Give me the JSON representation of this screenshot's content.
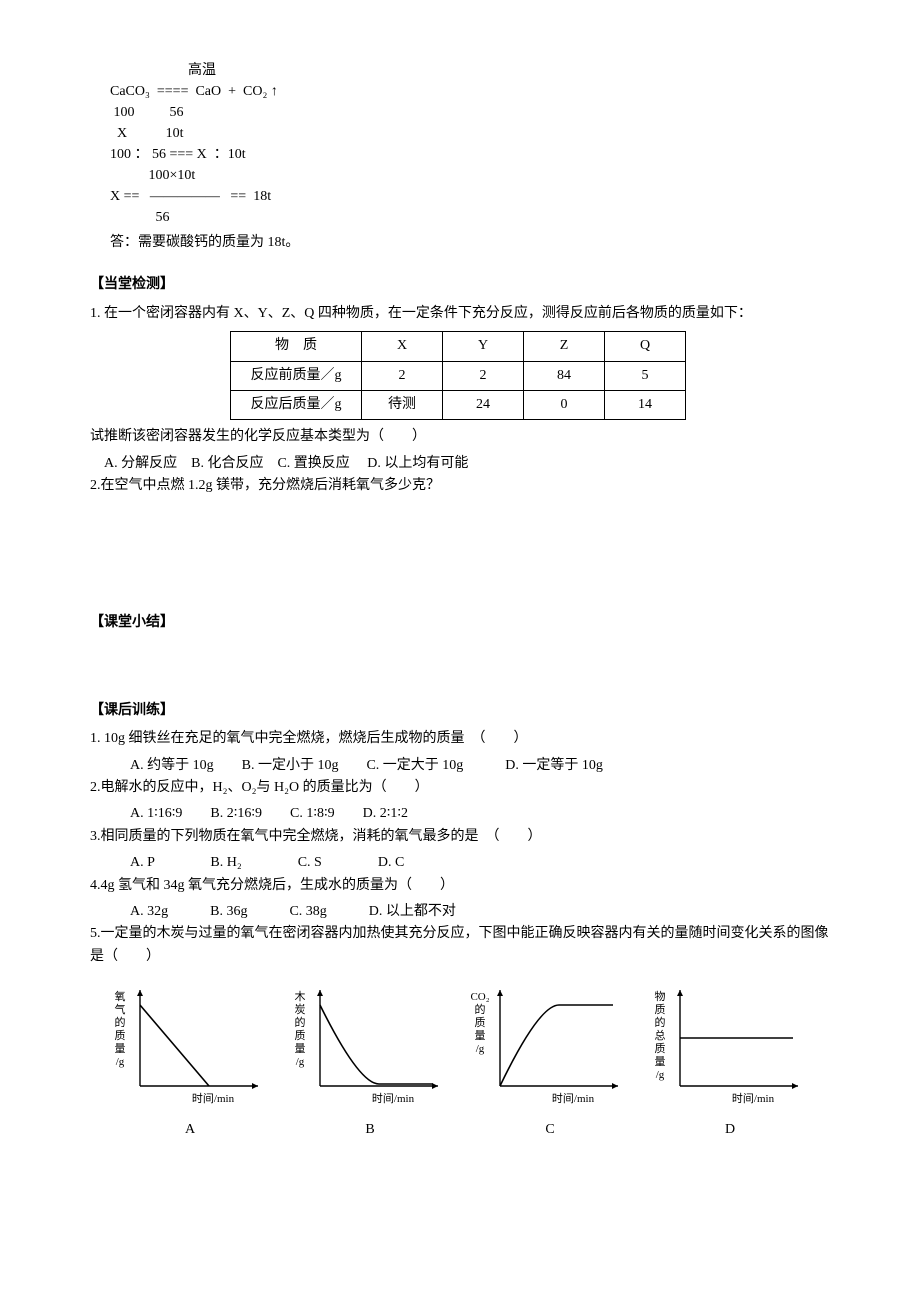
{
  "equation": {
    "condition": "高温",
    "line1": "CaCO₃  ====  CaO  +  CO₂ ↑",
    "line2": " 100          56",
    "line3": "  X           10t",
    "line4": "100 ： 56 === X  ：10t",
    "line5": "           100×10t",
    "line6": "X ==   —————   ==  18t",
    "line7": "             56",
    "answer": "答：需要碳酸钙的质量为 18t。"
  },
  "check": {
    "heading": "【当堂检测】",
    "q1_stem": "1. 在一个密闭容器内有 X、Y、Z、Q 四种物质，在一定条件下充分反应，测得反应前后各物质的质量如下：",
    "table": {
      "headers": [
        "物　质",
        "X",
        "Y",
        "Z",
        "Q"
      ],
      "row1": [
        "反应前质量／g",
        "2",
        "2",
        "84",
        "5"
      ],
      "row2": [
        "反应后质量／g",
        "待测",
        "24",
        "0",
        "14"
      ]
    },
    "q1_tail": "试推断该密闭容器发生的化学反应基本类型为（　　）",
    "q1_options": " A. 分解反应　B. 化合反应　C. 置换反应　 D. 以上均有可能",
    "q2": "2.在空气中点燃 1.2g 镁带，充分燃烧后消耗氧气多少克？"
  },
  "summary_heading": "【课堂小结】",
  "post": {
    "heading": "【课后训练】",
    "q1": "1. 10g 细铁丝在充足的氧气中完全燃烧，燃烧后生成物的质量　（　　）",
    "q1_opts": "A. 约等于 10g　　B. 一定小于 10g　　C. 一定大于 10g　　　D. 一定等于 10g",
    "q2": "2.电解水的反应中，H₂、O₂与 H₂O 的质量比为（　　）",
    "q2_opts": "A. 1∶16∶9　　B. 2∶16∶9　　C. 1∶8∶9　　D. 2∶1∶2",
    "q3": "3.相同质量的下列物质在氧气中完全燃烧，消耗的氧气最多的是　（　　）",
    "q3_opts": "A. P　　　　B. H₂　　　　C. S　　　　D. C",
    "q4": "4.4g 氢气和 34g 氧气充分燃烧后，生成水的质量为（　　）",
    "q4_opts": "A. 32g　　　B. 36g　　　C. 38g　　　D. 以上都不对",
    "q5": "5.一定量的木炭与过量的氧气在密闭容器内加热使其充分反应，下图中能正确反映容器内有关的量随时间变化关系的图像是（　　）"
  },
  "charts": {
    "width": 160,
    "height": 130,
    "axis_color": "#000000",
    "line_color": "#000000",
    "bg": "#ffffff",
    "font_size": 11,
    "x_label": "时间/min",
    "items": [
      {
        "id": "A",
        "y_label_lines": [
          "氧",
          "气",
          "的",
          "质",
          "量",
          "/g"
        ],
        "shape": "down"
      },
      {
        "id": "B",
        "y_label_lines": [
          "木",
          "炭",
          "的",
          "质",
          "量",
          "/g"
        ],
        "shape": "step_down"
      },
      {
        "id": "C",
        "y_label_lines": [
          "CO₂",
          "的",
          "质",
          "量",
          "/g"
        ],
        "shape": "step_up"
      },
      {
        "id": "D",
        "y_label_lines": [
          "物",
          "质",
          "的",
          "总",
          "质",
          "量",
          "/g"
        ],
        "shape": "flat"
      }
    ]
  }
}
